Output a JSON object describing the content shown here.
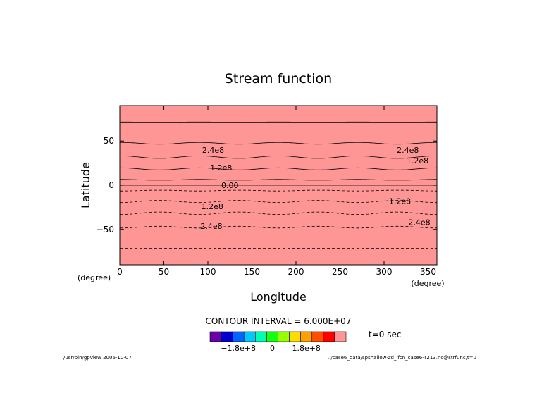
{
  "chart_data": {
    "type": "heatmap",
    "title": "Stream function",
    "xlabel": "Longitude",
    "ylabel": "Latitude",
    "x_unit": "(degree)",
    "y_unit": "(degree)",
    "xlim": [
      0,
      360
    ],
    "ylim": [
      -90,
      90
    ],
    "x_ticks": [
      0,
      50,
      100,
      150,
      200,
      250,
      300,
      350
    ],
    "y_ticks": [
      50,
      0,
      -50
    ],
    "x_tick_labels": [
      "0",
      "50",
      "100",
      "150",
      "200",
      "250",
      "300",
      "350"
    ],
    "y_tick_labels": [
      "50",
      "0",
      "−50"
    ],
    "contour_interval_text": "CONTOUR INTERVAL = 6.000E+07",
    "time_label": "t=0 sec",
    "colorbar": {
      "levels": [
        -270000000.0,
        -210000000.0,
        -150000000.0,
        -90000000.0,
        -30000000.0,
        30000000.0,
        90000000.0,
        150000000.0,
        210000000.0,
        270000000.0
      ],
      "colors": [
        "#6a00a8",
        "#0000cc",
        "#0064ff",
        "#00c8ff",
        "#00ffb4",
        "#14ff14",
        "#96ff00",
        "#ffdc00",
        "#ffa000",
        "#ff5000",
        "#ff0000",
        "#ff9696"
      ],
      "tick_values": [
        -180000000.0,
        0,
        180000000.0
      ],
      "tick_labels": [
        "−1.8e+8",
        "0",
        "1.8e+8"
      ]
    },
    "contour_labels": [
      {
        "text": "2.4e8",
        "lon": 106,
        "lat": 40
      },
      {
        "text": "1.2e8",
        "lon": 115,
        "lat": 20
      },
      {
        "text": "0.00",
        "lon": 125,
        "lat": 0
      },
      {
        "text": "2.4e8",
        "lon": 327,
        "lat": 40
      },
      {
        "text": "1.2e8",
        "lon": 338,
        "lat": 28
      },
      {
        "text": "1.2e8",
        "lon": 105,
        "lat": -24
      },
      {
        "text": "2.4e8",
        "lon": 104,
        "lat": -46
      },
      {
        "text": "1.2e8",
        "lon": 318,
        "lat": -18
      },
      {
        "text": "2.4e8",
        "lon": 340,
        "lat": -42
      }
    ]
  },
  "footer": {
    "left": "/usr/bin/gpview  2006-10-07",
    "right": "../case6_data/spshallow-zd_lfcn_case6-T213.nc@strfunc,t=0"
  }
}
